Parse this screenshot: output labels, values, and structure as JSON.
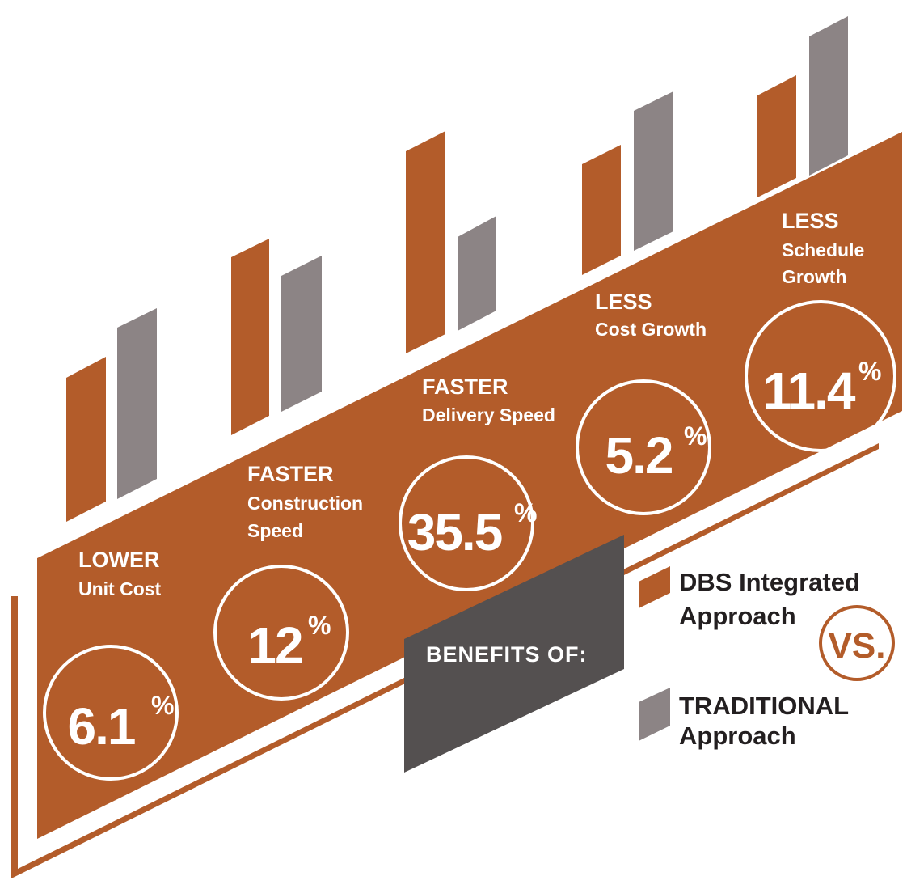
{
  "colors": {
    "accent": "#b35c2a",
    "gray": "#8c8485",
    "ribbon": "#545050",
    "text": "#231f20"
  },
  "benefits": [
    {
      "label_top": "LOWER",
      "label_sub": [
        "Unit Cost"
      ],
      "value": "6.1",
      "sign": "%"
    },
    {
      "label_top": "FASTER",
      "label_sub": [
        "Construction",
        "Speed"
      ],
      "value": "12",
      "sign": "%"
    },
    {
      "label_top": "FASTER",
      "label_sub": [
        "Delivery Speed"
      ],
      "value": "35.5",
      "sign": "%"
    },
    {
      "label_top": "LESS",
      "label_sub": [
        "Cost Growth"
      ],
      "value": "5.2",
      "sign": "%"
    },
    {
      "label_top": "LESS",
      "label_sub": [
        "Schedule",
        "Growth"
      ],
      "value": "11.4",
      "sign": "%"
    }
  ],
  "ribbon": {
    "text": "BENEFITS OF:"
  },
  "legend": {
    "dbs_line1": "DBS Integrated",
    "dbs_line2": "Approach",
    "vs": "VS.",
    "trad_line1": "TRADITIONAL",
    "trad_line2": "Approach"
  }
}
